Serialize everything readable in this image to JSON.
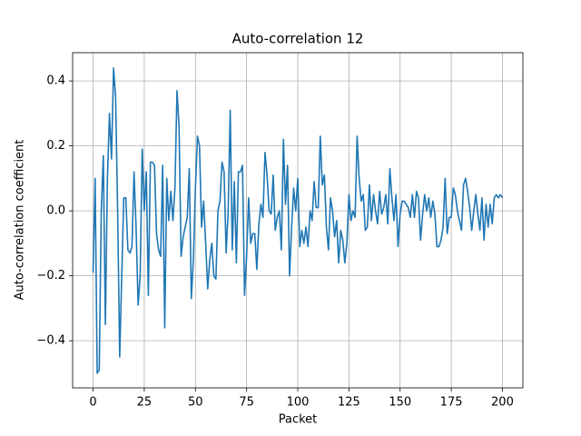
{
  "chart_data": {
    "type": "line",
    "title": "Auto-correlation 12",
    "xlabel": "Packet",
    "ylabel": "Auto-correlation coefficient",
    "x": [
      0,
      1,
      2,
      3,
      4,
      5,
      6,
      7,
      8,
      9,
      10,
      11,
      12,
      13,
      14,
      15,
      16,
      17,
      18,
      19,
      20,
      21,
      22,
      23,
      24,
      25,
      26,
      27,
      28,
      29,
      30,
      31,
      32,
      33,
      34,
      35,
      36,
      37,
      38,
      39,
      40,
      41,
      42,
      43,
      44,
      45,
      46,
      47,
      48,
      49,
      50,
      51,
      52,
      53,
      54,
      55,
      56,
      57,
      58,
      59,
      60,
      61,
      62,
      63,
      64,
      65,
      66,
      67,
      68,
      69,
      70,
      71,
      72,
      73,
      74,
      75,
      76,
      77,
      78,
      79,
      80,
      81,
      82,
      83,
      84,
      85,
      86,
      87,
      88,
      89,
      90,
      91,
      92,
      93,
      94,
      95,
      96,
      97,
      98,
      99,
      100,
      101,
      102,
      103,
      104,
      105,
      106,
      107,
      108,
      109,
      110,
      111,
      112,
      113,
      114,
      115,
      116,
      117,
      118,
      119,
      120,
      121,
      122,
      123,
      124,
      125,
      126,
      127,
      128,
      129,
      130,
      131,
      132,
      133,
      134,
      135,
      136,
      137,
      138,
      139,
      140,
      141,
      142,
      143,
      144,
      145,
      146,
      147,
      148,
      149,
      150,
      151,
      152,
      153,
      154,
      155,
      156,
      157,
      158,
      159,
      160,
      161,
      162,
      163,
      164,
      165,
      166,
      167,
      168,
      169,
      170,
      171,
      172,
      173,
      174,
      175,
      176,
      177,
      178,
      179,
      180,
      181,
      182,
      183,
      184,
      185,
      186,
      187,
      188,
      189,
      190,
      191,
      192,
      193,
      194,
      195,
      196,
      197,
      198,
      199,
      200
    ],
    "series": [
      {
        "name": "Auto-correlation",
        "color": "#1f77b4",
        "values": [
          -0.19,
          0.1,
          -0.5,
          -0.49,
          0.0,
          0.17,
          -0.35,
          0.1,
          0.3,
          0.16,
          0.44,
          0.35,
          0.0,
          -0.45,
          -0.2,
          0.04,
          0.04,
          -0.12,
          -0.13,
          -0.11,
          0.12,
          -0.05,
          -0.29,
          -0.2,
          0.19,
          0.0,
          0.12,
          -0.26,
          0.15,
          0.15,
          0.14,
          -0.07,
          -0.12,
          -0.14,
          0.14,
          -0.36,
          0.1,
          -0.03,
          0.06,
          -0.03,
          0.07,
          0.37,
          0.26,
          -0.14,
          -0.08,
          -0.05,
          -0.02,
          0.13,
          -0.27,
          -0.15,
          0.07,
          0.23,
          0.2,
          -0.05,
          0.03,
          -0.1,
          -0.24,
          -0.15,
          -0.1,
          -0.2,
          -0.21,
          0.0,
          0.03,
          0.15,
          0.12,
          -0.13,
          0.0,
          0.31,
          -0.12,
          0.09,
          -0.16,
          0.12,
          0.12,
          0.14,
          -0.26,
          -0.14,
          0.04,
          -0.1,
          -0.07,
          -0.07,
          -0.18,
          -0.04,
          0.02,
          -0.02,
          0.18,
          0.11,
          0.0,
          -0.01,
          0.11,
          -0.06,
          -0.02,
          0.0,
          -0.12,
          0.22,
          0.02,
          0.14,
          -0.2,
          -0.05,
          0.07,
          0.0,
          0.1,
          -0.11,
          -0.06,
          -0.1,
          -0.05,
          -0.11,
          0.0,
          -0.03,
          0.09,
          0.01,
          0.01,
          0.23,
          0.08,
          0.11,
          -0.05,
          -0.12,
          0.04,
          0.0,
          -0.08,
          -0.03,
          -0.16,
          -0.06,
          -0.09,
          -0.16,
          -0.1,
          0.05,
          -0.03,
          0.0,
          -0.02,
          0.23,
          0.1,
          0.03,
          0.05,
          -0.06,
          -0.05,
          0.08,
          -0.03,
          0.05,
          0.0,
          -0.04,
          0.06,
          -0.01,
          0.01,
          0.05,
          -0.04,
          0.13,
          0.04,
          -0.03,
          0.05,
          -0.11,
          -0.01,
          0.03,
          0.03,
          0.02,
          0.01,
          -0.02,
          0.05,
          -0.02,
          0.06,
          0.04,
          -0.09,
          -0.01,
          0.05,
          0.0,
          0.04,
          -0.02,
          0.03,
          -0.01,
          -0.11,
          -0.11,
          -0.09,
          -0.05,
          0.1,
          -0.07,
          -0.02,
          -0.02,
          0.07,
          0.05,
          0.0,
          -0.03,
          -0.06,
          0.08,
          0.1,
          0.06,
          0.01,
          -0.06,
          0.0,
          0.05,
          -0.01,
          -0.06,
          0.04,
          -0.09,
          0.02,
          -0.05,
          0.02,
          -0.04,
          0.04,
          0.05,
          0.04,
          0.05,
          0.04
        ]
      }
    ],
    "xlim": [
      -10,
      210
    ],
    "xticks": [
      0,
      25,
      50,
      75,
      100,
      125,
      150,
      175,
      200
    ],
    "ylim": [
      -0.545,
      0.487
    ],
    "yticks": [
      {
        "value": -0.4,
        "label": "−0.4"
      },
      {
        "value": -0.2,
        "label": "−0.2"
      },
      {
        "value": 0,
        "label": "0.0"
      },
      0.2,
      0.4
    ],
    "grid": true
  }
}
